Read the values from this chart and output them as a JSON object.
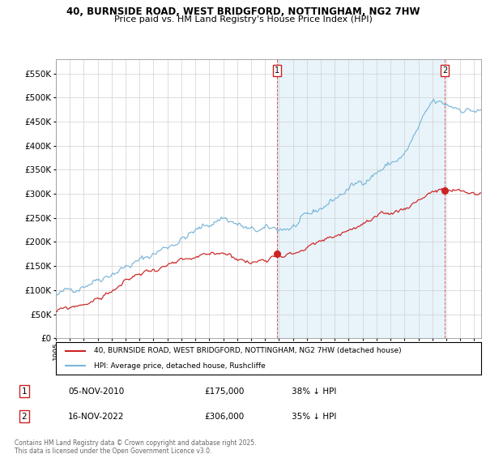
{
  "title1": "40, BURNSIDE ROAD, WEST BRIDGFORD, NOTTINGHAM, NG2 7HW",
  "title2": "Price paid vs. HM Land Registry's House Price Index (HPI)",
  "ylim": [
    0,
    580000
  ],
  "yticks": [
    0,
    50000,
    100000,
    150000,
    200000,
    250000,
    300000,
    350000,
    400000,
    450000,
    500000,
    550000
  ],
  "xmin": 1995.0,
  "xmax": 2025.5,
  "xticks": [
    1995,
    1996,
    1997,
    1998,
    1999,
    2000,
    2001,
    2002,
    2003,
    2004,
    2005,
    2006,
    2007,
    2008,
    2009,
    2010,
    2011,
    2012,
    2013,
    2014,
    2015,
    2016,
    2017,
    2018,
    2019,
    2020,
    2021,
    2022,
    2023,
    2024,
    2025
  ],
  "hpi_color": "#7ab6d8",
  "hpi_fill_color": "#daeef7",
  "price_color": "#cc2222",
  "sale1_x": 2010.85,
  "sale1_y": 175000,
  "sale2_x": 2022.88,
  "sale2_y": 306000,
  "sale1_label": "1",
  "sale2_label": "2",
  "legend_line1": "40, BURNSIDE ROAD, WEST BRIDGFORD, NOTTINGHAM, NG2 7HW (detached house)",
  "legend_line2": "HPI: Average price, detached house, Rushcliffe",
  "table_row1": [
    "1",
    "05-NOV-2010",
    "£175,000",
    "38% ↓ HPI"
  ],
  "table_row2": [
    "2",
    "16-NOV-2022",
    "£306,000",
    "35% ↓ HPI"
  ],
  "footer": "Contains HM Land Registry data © Crown copyright and database right 2025.\nThis data is licensed under the Open Government Licence v3.0.",
  "bg_color": "#ffffff",
  "grid_color": "#d0d0d0"
}
